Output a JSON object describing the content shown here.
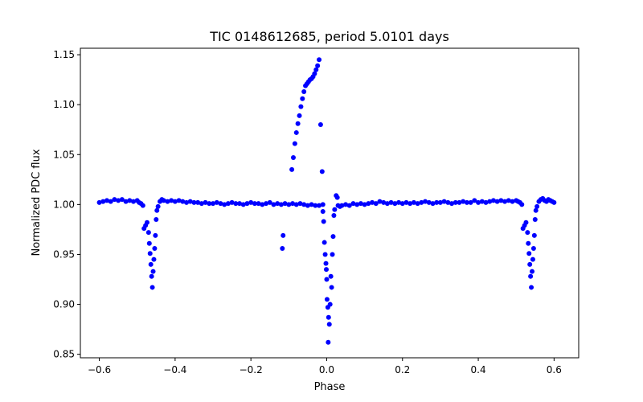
{
  "chart_data": {
    "type": "scatter",
    "title": "TIC 0148612685, period 5.0101 days",
    "xlabel": "Phase",
    "ylabel": "Normalized PDC flux",
    "xlim": [
      -0.65,
      0.665
    ],
    "ylim": [
      0.8465,
      1.1565
    ],
    "x_ticks": [
      -0.6,
      -0.4,
      -0.2,
      0.0,
      0.2,
      0.4,
      0.6
    ],
    "x_tick_labels": [
      "−0.6",
      "−0.4",
      "−0.2",
      "0.0",
      "0.2",
      "0.4",
      "0.6"
    ],
    "y_ticks": [
      0.85,
      0.9,
      0.95,
      1.0,
      1.05,
      1.1,
      1.15
    ],
    "y_tick_labels": [
      "0.85",
      "0.90",
      "0.95",
      "1.00",
      "1.05",
      "1.10",
      "1.15"
    ],
    "grid": false,
    "series": [
      {
        "name": "PDC flux",
        "color": "#0000ff",
        "marker": "circle",
        "points": [
          [
            -0.6,
            1.002
          ],
          [
            -0.59,
            1.003
          ],
          [
            -0.58,
            1.004
          ],
          [
            -0.57,
            1.003
          ],
          [
            -0.56,
            1.005
          ],
          [
            -0.55,
            1.004
          ],
          [
            -0.54,
            1.005
          ],
          [
            -0.53,
            1.003
          ],
          [
            -0.52,
            1.004
          ],
          [
            -0.51,
            1.003
          ],
          [
            -0.5,
            1.004
          ],
          [
            -0.495,
            1.002
          ],
          [
            -0.49,
            1.001
          ],
          [
            -0.485,
            0.999
          ],
          [
            -0.482,
            0.976
          ],
          [
            -0.478,
            0.979
          ],
          [
            -0.474,
            0.982
          ],
          [
            -0.47,
            0.972
          ],
          [
            -0.468,
            0.961
          ],
          [
            -0.466,
            0.951
          ],
          [
            -0.464,
            0.94
          ],
          [
            -0.462,
            0.928
          ],
          [
            -0.46,
            0.917
          ],
          [
            -0.458,
            0.933
          ],
          [
            -0.456,
            0.945
          ],
          [
            -0.454,
            0.956
          ],
          [
            -0.452,
            0.969
          ],
          [
            -0.45,
            0.985
          ],
          [
            -0.448,
            0.994
          ],
          [
            -0.445,
            0.998
          ],
          [
            -0.44,
            1.003
          ],
          [
            -0.435,
            1.005
          ],
          [
            -0.43,
            1.004
          ],
          [
            -0.42,
            1.003
          ],
          [
            -0.41,
            1.004
          ],
          [
            -0.4,
            1.003
          ],
          [
            -0.39,
            1.004
          ],
          [
            -0.38,
            1.003
          ],
          [
            -0.37,
            1.002
          ],
          [
            -0.36,
            1.003
          ],
          [
            -0.35,
            1.002
          ],
          [
            -0.34,
            1.002
          ],
          [
            -0.33,
            1.001
          ],
          [
            -0.32,
            1.002
          ],
          [
            -0.31,
            1.001
          ],
          [
            -0.3,
            1.001
          ],
          [
            -0.29,
            1.002
          ],
          [
            -0.28,
            1.001
          ],
          [
            -0.27,
            1.0
          ],
          [
            -0.26,
            1.001
          ],
          [
            -0.25,
            1.002
          ],
          [
            -0.24,
            1.001
          ],
          [
            -0.23,
            1.001
          ],
          [
            -0.22,
            1.0
          ],
          [
            -0.21,
            1.001
          ],
          [
            -0.2,
            1.002
          ],
          [
            -0.19,
            1.001
          ],
          [
            -0.18,
            1.001
          ],
          [
            -0.17,
            1.0
          ],
          [
            -0.16,
            1.001
          ],
          [
            -0.15,
            1.002
          ],
          [
            -0.14,
            1.0
          ],
          [
            -0.13,
            1.001
          ],
          [
            -0.12,
            1.0
          ],
          [
            -0.11,
            1.001
          ],
          [
            -0.1,
            1.0
          ],
          [
            -0.09,
            1.001
          ],
          [
            -0.08,
            1.0
          ],
          [
            -0.07,
            1.001
          ],
          [
            -0.06,
            1.0
          ],
          [
            -0.05,
            0.999
          ],
          [
            -0.04,
            1.0
          ],
          [
            -0.03,
            0.999
          ],
          [
            -0.02,
            0.999
          ],
          [
            -0.01,
            1.0
          ],
          [
            -0.115,
            0.969
          ],
          [
            -0.117,
            0.956
          ],
          [
            -0.092,
            1.035
          ],
          [
            -0.088,
            1.047
          ],
          [
            -0.084,
            1.061
          ],
          [
            -0.08,
            1.072
          ],
          [
            -0.076,
            1.081
          ],
          [
            -0.072,
            1.089
          ],
          [
            -0.068,
            1.098
          ],
          [
            -0.064,
            1.106
          ],
          [
            -0.06,
            1.113
          ],
          [
            -0.056,
            1.119
          ],
          [
            -0.052,
            1.121
          ],
          [
            -0.048,
            1.123
          ],
          [
            -0.044,
            1.125
          ],
          [
            -0.04,
            1.126
          ],
          [
            -0.036,
            1.128
          ],
          [
            -0.032,
            1.131
          ],
          [
            -0.028,
            1.135
          ],
          [
            -0.024,
            1.139
          ],
          [
            -0.02,
            1.145
          ],
          [
            -0.016,
            1.08
          ],
          [
            -0.012,
            1.033
          ],
          [
            -0.01,
            0.993
          ],
          [
            -0.008,
            0.983
          ],
          [
            -0.006,
            0.962
          ],
          [
            -0.004,
            0.95
          ],
          [
            -0.002,
            0.941
          ],
          [
            -0.001,
            0.935
          ],
          [
            0.0,
            0.925
          ],
          [
            0.001,
            0.905
          ],
          [
            0.003,
            0.897
          ],
          [
            0.005,
            0.887
          ],
          [
            0.007,
            0.88
          ],
          [
            0.004,
            0.862
          ],
          [
            0.009,
            0.9
          ],
          [
            0.011,
            0.928
          ],
          [
            0.013,
            0.917
          ],
          [
            0.015,
            0.95
          ],
          [
            0.017,
            0.968
          ],
          [
            0.019,
            0.989
          ],
          [
            0.021,
            0.995
          ],
          [
            0.025,
            1.009
          ],
          [
            0.028,
            1.007
          ],
          [
            0.03,
            0.999
          ],
          [
            0.035,
            0.998
          ],
          [
            0.04,
            0.999
          ],
          [
            0.05,
            1.0
          ],
          [
            0.06,
            0.999
          ],
          [
            0.07,
            1.001
          ],
          [
            0.08,
            1.0
          ],
          [
            0.09,
            1.001
          ],
          [
            0.1,
            1.0
          ],
          [
            0.11,
            1.001
          ],
          [
            0.12,
            1.002
          ],
          [
            0.13,
            1.001
          ],
          [
            0.14,
            1.003
          ],
          [
            0.15,
            1.002
          ],
          [
            0.16,
            1.001
          ],
          [
            0.17,
            1.002
          ],
          [
            0.18,
            1.001
          ],
          [
            0.19,
            1.002
          ],
          [
            0.2,
            1.001
          ],
          [
            0.21,
            1.002
          ],
          [
            0.22,
            1.001
          ],
          [
            0.23,
            1.002
          ],
          [
            0.24,
            1.001
          ],
          [
            0.25,
            1.002
          ],
          [
            0.26,
            1.003
          ],
          [
            0.27,
            1.002
          ],
          [
            0.28,
            1.001
          ],
          [
            0.29,
            1.002
          ],
          [
            0.3,
            1.002
          ],
          [
            0.31,
            1.003
          ],
          [
            0.32,
            1.002
          ],
          [
            0.33,
            1.001
          ],
          [
            0.34,
            1.002
          ],
          [
            0.35,
            1.002
          ],
          [
            0.36,
            1.003
          ],
          [
            0.37,
            1.002
          ],
          [
            0.38,
            1.002
          ],
          [
            0.39,
            1.004
          ],
          [
            0.4,
            1.002
          ],
          [
            0.41,
            1.003
          ],
          [
            0.42,
            1.002
          ],
          [
            0.43,
            1.003
          ],
          [
            0.44,
            1.004
          ],
          [
            0.45,
            1.003
          ],
          [
            0.46,
            1.004
          ],
          [
            0.47,
            1.003
          ],
          [
            0.48,
            1.004
          ],
          [
            0.49,
            1.003
          ],
          [
            0.5,
            1.004
          ],
          [
            0.505,
            1.003
          ],
          [
            0.51,
            1.002
          ],
          [
            0.515,
            1.0
          ],
          [
            0.518,
            0.976
          ],
          [
            0.522,
            0.979
          ],
          [
            0.526,
            0.982
          ],
          [
            0.53,
            0.972
          ],
          [
            0.532,
            0.961
          ],
          [
            0.534,
            0.951
          ],
          [
            0.536,
            0.94
          ],
          [
            0.538,
            0.928
          ],
          [
            0.54,
            0.917
          ],
          [
            0.542,
            0.933
          ],
          [
            0.544,
            0.945
          ],
          [
            0.546,
            0.956
          ],
          [
            0.548,
            0.969
          ],
          [
            0.55,
            0.985
          ],
          [
            0.552,
            0.994
          ],
          [
            0.555,
            0.998
          ],
          [
            0.56,
            1.003
          ],
          [
            0.565,
            1.005
          ],
          [
            0.57,
            1.006
          ],
          [
            0.575,
            1.004
          ],
          [
            0.58,
            1.003
          ],
          [
            0.585,
            1.005
          ],
          [
            0.59,
            1.004
          ],
          [
            0.595,
            1.003
          ],
          [
            0.6,
            1.002
          ]
        ]
      }
    ]
  }
}
